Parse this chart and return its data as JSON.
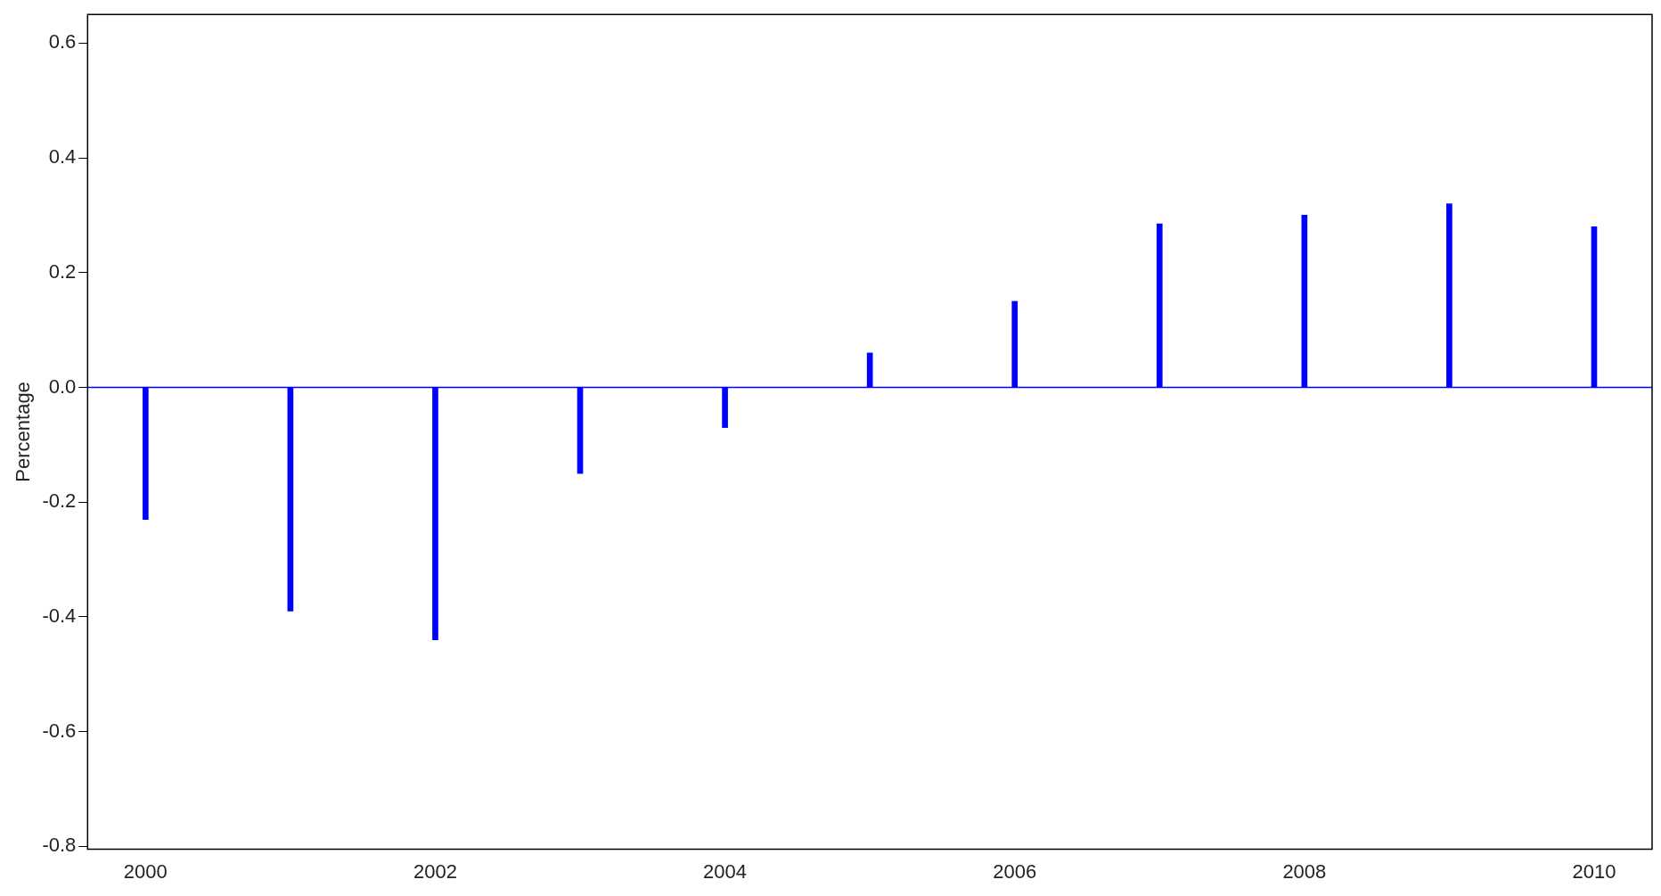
{
  "chart_data": {
    "type": "bar",
    "ylabel": "Percentage",
    "x": [
      2000,
      2001,
      2002,
      2003,
      2004,
      2005,
      2006,
      2007,
      2008,
      2009,
      2010
    ],
    "values": [
      -0.23,
      -0.39,
      -0.44,
      -0.15,
      -0.07,
      0.06,
      0.15,
      0.285,
      0.3,
      0.32,
      0.28
    ],
    "color": "#0000ff",
    "xlim": [
      1999.6,
      2010.4
    ],
    "xticks": [
      2000,
      2002,
      2004,
      2006,
      2008,
      2010
    ],
    "ylim": [
      -0.805,
      0.65
    ],
    "yticks": [
      -0.8,
      -0.6,
      -0.4,
      -0.2,
      {
        "value": 0,
        "label": "0.0"
      },
      0.2,
      0.4,
      0.6
    ],
    "ref_lines": [
      {
        "axis": "y",
        "value": 0,
        "color": "#0000ff"
      }
    ],
    "grid": false,
    "legend": false
  }
}
